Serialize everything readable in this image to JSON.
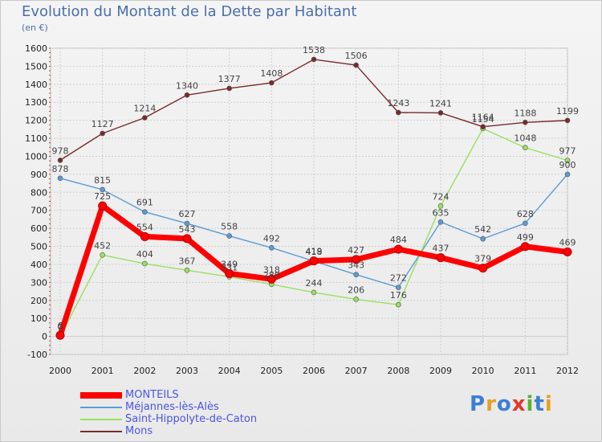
{
  "title": "Evolution du Montant de la Dette par Habitant",
  "unit": "(en €)",
  "logo": {
    "text": "Proxiti",
    "colors": [
      "#3b7fd4",
      "#e8a020",
      "#3b7fd4",
      "#e03a2e",
      "#5bb030",
      "#3b7fd4",
      "#e8a020"
    ]
  },
  "chart_data": {
    "type": "line",
    "title": "Evolution du Montant de la Dette par Habitant",
    "ylabel": "(en €)",
    "x": [
      "2000",
      "2001",
      "2002",
      "2003",
      "2004",
      "2005",
      "2006",
      "2007",
      "2008",
      "2009",
      "2010",
      "2011",
      "2012"
    ],
    "ylim": [
      -100,
      1600
    ],
    "yticks": [
      -100,
      0,
      100,
      200,
      300,
      400,
      500,
      600,
      700,
      800,
      900,
      1000,
      1100,
      1200,
      1300,
      1400,
      1500,
      1600
    ],
    "grid": true,
    "legend_position": "bottom-left",
    "series": [
      {
        "name": "MONTEILS",
        "color": "#ff0000",
        "values": [
          6,
          725,
          554,
          543,
          349,
          318,
          419,
          427,
          484,
          437,
          379,
          499,
          469
        ]
      },
      {
        "name": "Méjannes-lès-Alès",
        "color": "#5b9bd5",
        "values": [
          878,
          815,
          691,
          627,
          558,
          492,
          418,
          343,
          272,
          635,
          542,
          628,
          900
        ]
      },
      {
        "name": "Saint-Hippolyte-de-Caton",
        "color": "#99e060",
        "values": [
          0,
          452,
          404,
          367,
          331,
          289,
          244,
          206,
          176,
          724,
          1154,
          1048,
          977
        ]
      },
      {
        "name": "Mons",
        "color": "#7a2a2a",
        "values": [
          978,
          1127,
          1214,
          1340,
          1377,
          1408,
          1538,
          1506,
          1243,
          1241,
          1164,
          1188,
          1199
        ]
      }
    ]
  }
}
